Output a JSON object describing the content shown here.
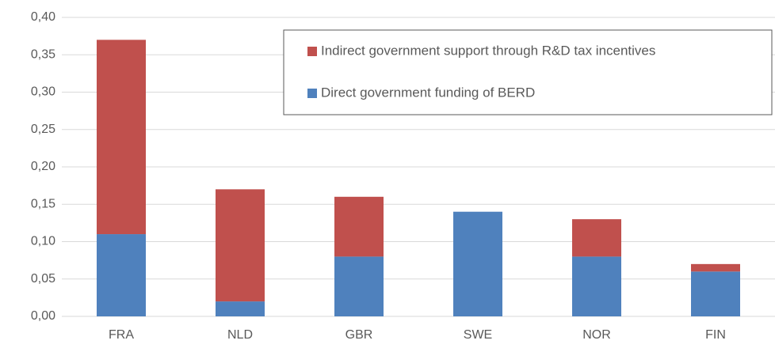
{
  "chart_data": {
    "type": "stacked_bar",
    "categories": [
      "FRA",
      "NLD",
      "GBR",
      "SWE",
      "NOR",
      "FIN"
    ],
    "series": [
      {
        "name": "Direct government funding of BERD",
        "color": "#4f81bd",
        "values": [
          0.11,
          0.02,
          0.08,
          0.14,
          0.08,
          0.06
        ]
      },
      {
        "name": "Indirect government support through R&D tax incentives",
        "color": "#c0504d",
        "values": [
          0.26,
          0.15,
          0.08,
          0,
          0.05,
          0.01
        ]
      }
    ],
    "ylim": [
      0,
      0.4
    ],
    "yticks": [
      {
        "value": 0,
        "label": "0,00"
      },
      {
        "value": 0.05,
        "label": "0,05"
      },
      {
        "value": 0.1,
        "label": "0,10"
      },
      {
        "value": 0.15,
        "label": "0,15"
      },
      {
        "value": 0.2,
        "label": "0,20"
      },
      {
        "value": 0.25,
        "label": "0,25"
      },
      {
        "value": 0.3,
        "label": "0,30"
      },
      {
        "value": 0.35,
        "label": "0,35"
      },
      {
        "value": 0.4,
        "label": "0,40"
      }
    ],
    "grid": true
  }
}
